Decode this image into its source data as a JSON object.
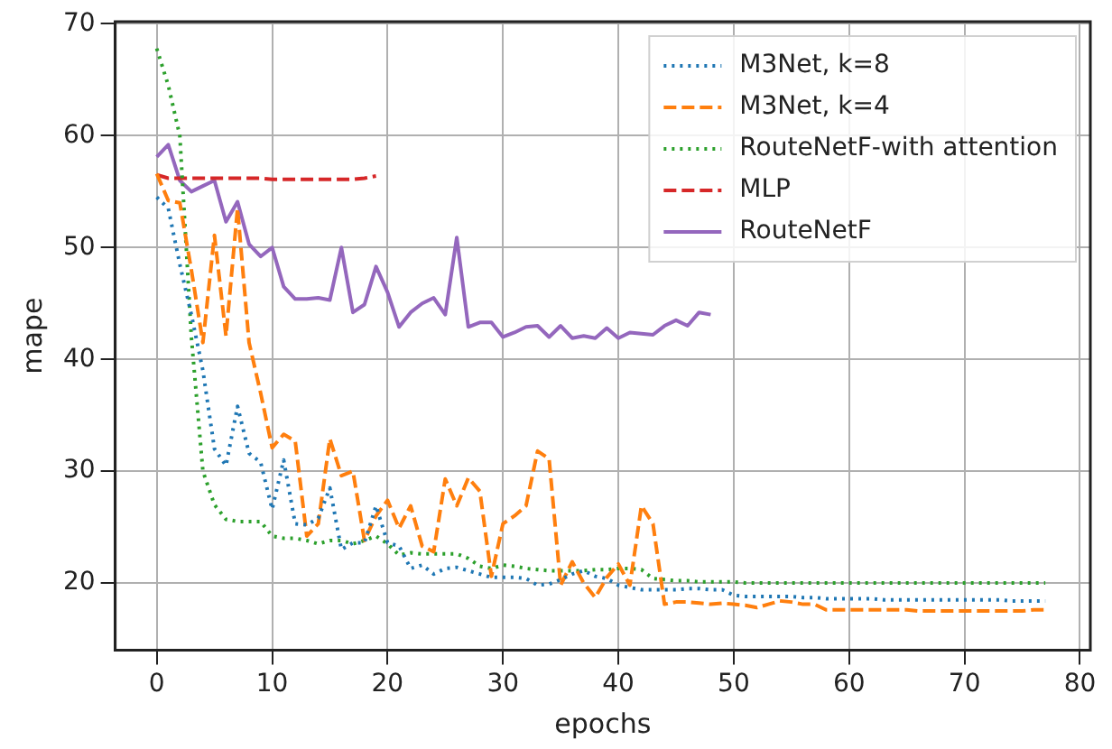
{
  "chart_data": {
    "type": "line",
    "xlabel": "epochs",
    "ylabel": "mape",
    "x": [
      0,
      1,
      2,
      3,
      4,
      5,
      6,
      7,
      8,
      9,
      10,
      11,
      12,
      13,
      14,
      15,
      16,
      17,
      18,
      19,
      20,
      21,
      22,
      23,
      24,
      25,
      26,
      27,
      28,
      29,
      30,
      31,
      32,
      33,
      34,
      35,
      36,
      37,
      38,
      39,
      40,
      41,
      42,
      43,
      44,
      45,
      46,
      47,
      48,
      49,
      50,
      51,
      52,
      53,
      54,
      55,
      56,
      57,
      58,
      59,
      60,
      61,
      62,
      63,
      64,
      65,
      66,
      67,
      68,
      69,
      70,
      71,
      72,
      73,
      74,
      75,
      76,
      77
    ],
    "xlim": [
      -3.6,
      80.9
    ],
    "xticks": [
      0,
      10,
      20,
      30,
      40,
      50,
      60,
      70,
      80
    ],
    "ylim": [
      14,
      70.2
    ],
    "yticks": [
      20,
      30,
      40,
      50,
      60,
      70
    ],
    "grid": true,
    "legend": "top right",
    "marker": "none",
    "series": [
      {
        "name": "M3Net, k=8",
        "color": "#1f77b4",
        "line_style": "dotted",
        "values": [
          54.5,
          53.5,
          48.5,
          44,
          39,
          32,
          30.5,
          35.8,
          31.6,
          30.8,
          26.6,
          31,
          25.3,
          25.2,
          25.8,
          28.5,
          23,
          23.6,
          23.6,
          26.9,
          23.6,
          23.3,
          21.3,
          21.6,
          20.8,
          21.3,
          21.4,
          21.1,
          20.8,
          20.5,
          20.5,
          20.5,
          20.4,
          19.8,
          19.9,
          20.3,
          20.8,
          21.1,
          20.6,
          20.4,
          19.8,
          19.6,
          19.4,
          19.4,
          19.4,
          19.4,
          19.5,
          19.5,
          19.4,
          19.4,
          18.9,
          18.8,
          18.8,
          18.8,
          18.8,
          18.8,
          18.7,
          18.7,
          18.6,
          18.6,
          18.6,
          18.6,
          18.6,
          18.5,
          18.5,
          18.5,
          18.5,
          18.5,
          18.5,
          18.5,
          18.5,
          18.5,
          18.5,
          18.5,
          18.4,
          18.4,
          18.4,
          18.4
        ]
      },
      {
        "name": "M3Net, k=4",
        "color": "#ff7f0e",
        "line_style": "dashed",
        "values": [
          56.6,
          54.2,
          54,
          48,
          41.5,
          51.1,
          42.1,
          53.5,
          41.5,
          37,
          32.1,
          33.3,
          32.7,
          24.2,
          25.3,
          32.9,
          29.6,
          30,
          23.8,
          26,
          27.4,
          24.9,
          26.9,
          23.3,
          22.8,
          29.3,
          26.9,
          29.4,
          28.2,
          20.6,
          25.3,
          26,
          26.9,
          31.8,
          31.1,
          19.8,
          21.9,
          20,
          18.7,
          20.5,
          21.7,
          19.8,
          26.9,
          25.3,
          18.1,
          18.3,
          18.3,
          18.2,
          18.1,
          18.2,
          18.1,
          18,
          17.8,
          18.1,
          18.4,
          18.3,
          18.1,
          18.1,
          17.6,
          17.6,
          17.6,
          17.6,
          17.6,
          17.6,
          17.6,
          17.6,
          17.5,
          17.5,
          17.5,
          17.5,
          17.5,
          17.5,
          17.5,
          17.5,
          17.5,
          17.5,
          17.6,
          17.6
        ]
      },
      {
        "name": "RouteNetF-with attention",
        "color": "#2ca02c",
        "line_style": "dotted",
        "values": [
          67.8,
          64.5,
          60,
          42,
          30,
          27,
          25.7,
          25.5,
          25.5,
          25.5,
          24.2,
          24,
          24,
          23.8,
          23.5,
          23.8,
          23.8,
          23.5,
          23.8,
          24.2,
          23.5,
          22.5,
          22.7,
          22.6,
          22.6,
          22.6,
          22.6,
          22.2,
          21.5,
          21.3,
          21.6,
          21.5,
          21.3,
          21.2,
          21.1,
          21.1,
          21.1,
          21.1,
          21.2,
          21.2,
          21.3,
          21.3,
          21.2,
          20.4,
          20.3,
          20.2,
          20.2,
          20.1,
          20.1,
          20.1,
          20.1,
          20,
          20,
          20,
          20,
          20,
          20,
          20,
          20,
          20,
          20,
          20,
          20,
          20,
          20,
          20,
          20,
          20,
          20,
          20,
          20,
          20,
          20,
          20,
          20,
          20,
          20,
          20
        ]
      },
      {
        "name": "MLP",
        "color": "#d62728",
        "line_style": "dashed",
        "x": [
          0,
          1,
          2,
          3,
          4,
          5,
          6,
          7,
          8,
          9,
          10,
          11,
          12,
          13,
          14,
          15,
          16,
          17,
          18,
          19
        ],
        "values": [
          56.5,
          56.2,
          56.2,
          56.2,
          56.2,
          56.2,
          56.2,
          56.2,
          56.2,
          56.2,
          56.1,
          56.1,
          56.1,
          56.1,
          56.1,
          56.1,
          56.1,
          56.1,
          56.2,
          56.4
        ]
      },
      {
        "name": "RouteNetF",
        "color": "#9467bd",
        "line_style": "solid",
        "x": [
          0,
          1,
          2,
          3,
          4,
          5,
          6,
          7,
          8,
          9,
          10,
          11,
          12,
          13,
          14,
          15,
          16,
          17,
          18,
          19,
          20,
          21,
          22,
          23,
          24,
          25,
          26,
          27,
          28,
          29,
          30,
          31,
          32,
          33,
          34,
          35,
          36,
          37,
          38,
          39,
          40,
          41,
          42,
          43,
          44,
          45,
          46,
          47,
          48
        ],
        "values": [
          58.1,
          59.2,
          56,
          55,
          55.5,
          56,
          52.3,
          54.1,
          50.3,
          49.2,
          50,
          46.5,
          45.4,
          45.4,
          45.5,
          45.3,
          50,
          44.2,
          44.9,
          48.3,
          46,
          42.9,
          44.2,
          45,
          45.5,
          44,
          50.9,
          42.9,
          43.3,
          43.3,
          42,
          42.4,
          42.9,
          43,
          42,
          43,
          41.9,
          42.1,
          41.9,
          42.8,
          41.9,
          42.4,
          42.3,
          42.2,
          43,
          43.5,
          43,
          44.2,
          44
        ]
      }
    ]
  }
}
